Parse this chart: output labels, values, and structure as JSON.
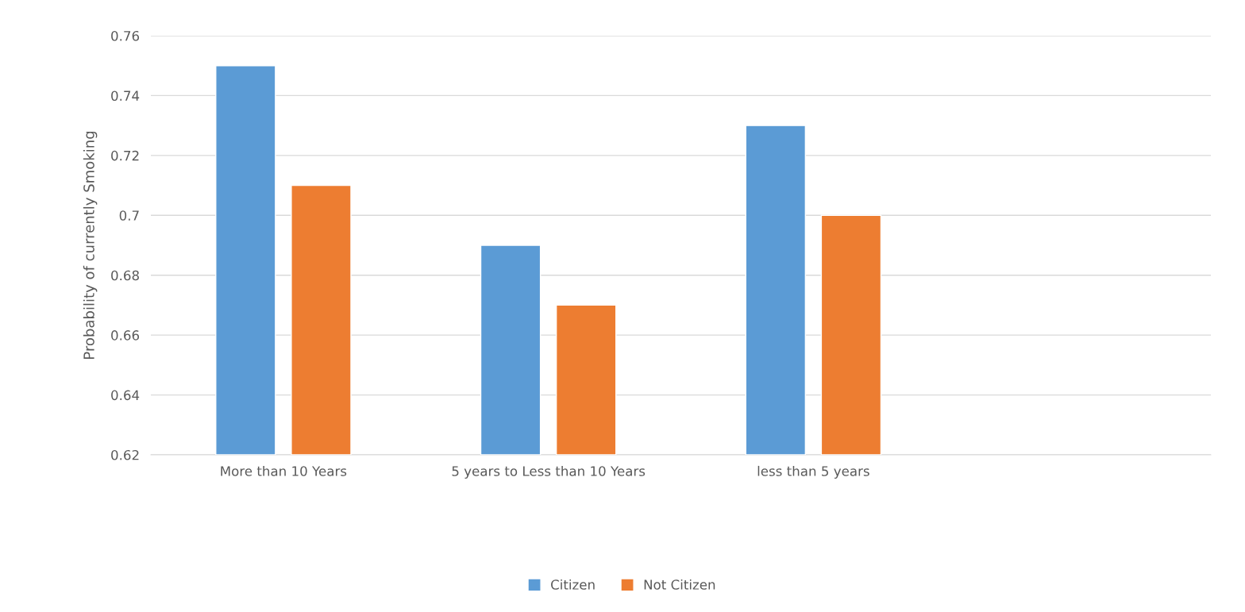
{
  "chart_data": {
    "type": "bar",
    "ylabel": "Probability of currently Smoking",
    "categories": [
      "More than 10 Years",
      "5 years to Less than 10 Years",
      "less than 5 years",
      null
    ],
    "series": [
      {
        "name": "Citizen",
        "color": "#5b9bd5",
        "values": [
          0.75,
          0.69,
          0.73,
          null
        ]
      },
      {
        "name": "Not Citizen",
        "color": "#ed7d31",
        "values": [
          0.71,
          0.67,
          0.7,
          null
        ]
      }
    ],
    "ylim": [
      0.62,
      0.76
    ],
    "yticks": [
      0.62,
      0.64,
      0.66,
      0.68,
      {
        "value": 0.7,
        "label": "0.7"
      },
      0.72,
      0.74,
      0.76
    ],
    "grid": "y",
    "legend": "bottom"
  }
}
